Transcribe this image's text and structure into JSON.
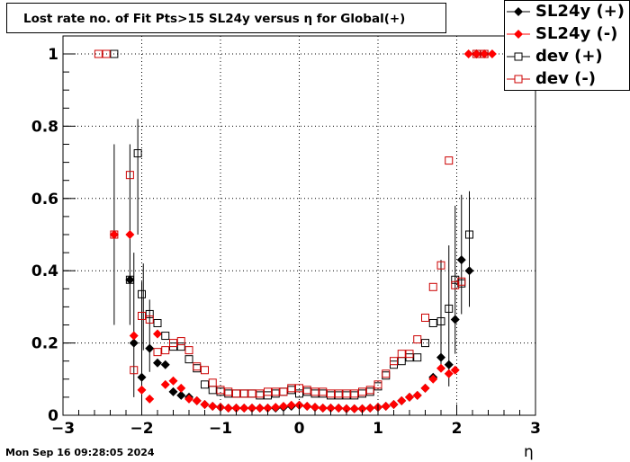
{
  "title": "Lost rate no. of Fit Pts>15 SL24y versus η for Global(+)",
  "timestamp": "Mon Sep 16 09:28:05 2024",
  "xlabel": "η",
  "chart_data": {
    "type": "scatter",
    "title": "Lost rate no. of Fit Pts>15 SL24y versus η for Global(+)",
    "xlabel": "η",
    "ylabel": "",
    "xlim": [
      -3,
      3
    ],
    "ylim": [
      0,
      1.02
    ],
    "x_ticks": [
      "−3",
      "−2",
      "−1",
      "0",
      "1",
      "2",
      "3"
    ],
    "y_ticks": [
      "0",
      "0.2",
      "0.4",
      "0.6",
      "0.8",
      "1"
    ],
    "grid": true,
    "legend_position": "top-right",
    "series": [
      {
        "name": "SL24y (+)",
        "color": "#000000",
        "marker": "filled-diamond",
        "points": [
          [
            -2.15,
            0.375
          ],
          [
            -2.1,
            0.2
          ],
          [
            -2.0,
            0.105
          ],
          [
            -1.9,
            0.185
          ],
          [
            -1.8,
            0.145
          ],
          [
            -1.7,
            0.14
          ],
          [
            -1.6,
            0.065
          ],
          [
            -1.5,
            0.055
          ],
          [
            -1.4,
            0.05
          ],
          [
            -1.3,
            0.04
          ],
          [
            -1.2,
            0.03
          ],
          [
            -1.1,
            0.025
          ],
          [
            -1.0,
            0.022
          ],
          [
            -0.9,
            0.02
          ],
          [
            -0.8,
            0.02
          ],
          [
            -0.7,
            0.02
          ],
          [
            -0.6,
            0.02
          ],
          [
            -0.5,
            0.02
          ],
          [
            -0.4,
            0.02
          ],
          [
            -0.3,
            0.02
          ],
          [
            -0.2,
            0.022
          ],
          [
            -0.1,
            0.025
          ],
          [
            0.0,
            0.028
          ],
          [
            0.1,
            0.025
          ],
          [
            0.2,
            0.022
          ],
          [
            0.3,
            0.02
          ],
          [
            0.4,
            0.02
          ],
          [
            0.5,
            0.02
          ],
          [
            0.6,
            0.018
          ],
          [
            0.7,
            0.018
          ],
          [
            0.8,
            0.018
          ],
          [
            0.9,
            0.02
          ],
          [
            1.0,
            0.022
          ],
          [
            1.1,
            0.025
          ],
          [
            1.2,
            0.03
          ],
          [
            1.3,
            0.04
          ],
          [
            1.4,
            0.05
          ],
          [
            1.5,
            0.055
          ],
          [
            1.6,
            0.075
          ],
          [
            1.7,
            0.105
          ],
          [
            1.8,
            0.16
          ],
          [
            1.9,
            0.14
          ],
          [
            1.98,
            0.265
          ],
          [
            2.06,
            0.43
          ],
          [
            2.16,
            0.4
          ],
          [
            2.25,
            1.0
          ]
        ]
      },
      {
        "name": "SL24y (-)",
        "color": "#ff0000",
        "marker": "filled-diamond",
        "points": [
          [
            -2.35,
            0.5
          ],
          [
            -2.15,
            0.5
          ],
          [
            -2.1,
            0.22
          ],
          [
            -2.0,
            0.07
          ],
          [
            -1.9,
            0.045
          ],
          [
            -1.8,
            0.225
          ],
          [
            -1.7,
            0.085
          ],
          [
            -1.6,
            0.095
          ],
          [
            -1.5,
            0.075
          ],
          [
            -1.4,
            0.045
          ],
          [
            -1.3,
            0.04
          ],
          [
            -1.2,
            0.03
          ],
          [
            -1.1,
            0.025
          ],
          [
            -1.0,
            0.022
          ],
          [
            -0.9,
            0.02
          ],
          [
            -0.8,
            0.02
          ],
          [
            -0.7,
            0.02
          ],
          [
            -0.6,
            0.02
          ],
          [
            -0.5,
            0.02
          ],
          [
            -0.4,
            0.02
          ],
          [
            -0.3,
            0.022
          ],
          [
            -0.2,
            0.025
          ],
          [
            -0.1,
            0.028
          ],
          [
            0.0,
            0.028
          ],
          [
            0.1,
            0.025
          ],
          [
            0.2,
            0.022
          ],
          [
            0.3,
            0.02
          ],
          [
            0.4,
            0.02
          ],
          [
            0.5,
            0.02
          ],
          [
            0.6,
            0.018
          ],
          [
            0.7,
            0.018
          ],
          [
            0.8,
            0.018
          ],
          [
            0.9,
            0.02
          ],
          [
            1.0,
            0.022
          ],
          [
            1.1,
            0.025
          ],
          [
            1.2,
            0.03
          ],
          [
            1.3,
            0.04
          ],
          [
            1.4,
            0.05
          ],
          [
            1.5,
            0.055
          ],
          [
            1.6,
            0.075
          ],
          [
            1.7,
            0.1
          ],
          [
            1.8,
            0.13
          ],
          [
            1.9,
            0.115
          ],
          [
            1.98,
            0.125
          ],
          [
            2.15,
            1.0
          ],
          [
            2.25,
            1.0
          ],
          [
            2.35,
            1.0
          ],
          [
            2.45,
            1.0
          ]
        ]
      },
      {
        "name": "dev (+)",
        "color": "#000000",
        "marker": "open-square",
        "points": [
          [
            -2.35,
            1.0
          ],
          [
            -2.15,
            0.375
          ],
          [
            -2.05,
            0.725
          ],
          [
            -2.0,
            0.335
          ],
          [
            -1.9,
            0.28
          ],
          [
            -1.8,
            0.255
          ],
          [
            -1.7,
            0.22
          ],
          [
            -1.6,
            0.19
          ],
          [
            -1.5,
            0.19
          ],
          [
            -1.4,
            0.155
          ],
          [
            -1.3,
            0.13
          ],
          [
            -1.2,
            0.085
          ],
          [
            -1.1,
            0.07
          ],
          [
            -1.0,
            0.065
          ],
          [
            -0.9,
            0.06
          ],
          [
            -0.8,
            0.06
          ],
          [
            -0.7,
            0.06
          ],
          [
            -0.6,
            0.06
          ],
          [
            -0.5,
            0.055
          ],
          [
            -0.4,
            0.055
          ],
          [
            -0.3,
            0.06
          ],
          [
            -0.2,
            0.065
          ],
          [
            -0.1,
            0.07
          ],
          [
            0.0,
            0.06
          ],
          [
            0.1,
            0.065
          ],
          [
            0.2,
            0.06
          ],
          [
            0.3,
            0.06
          ],
          [
            0.4,
            0.055
          ],
          [
            0.5,
            0.055
          ],
          [
            0.6,
            0.055
          ],
          [
            0.7,
            0.055
          ],
          [
            0.8,
            0.06
          ],
          [
            0.9,
            0.065
          ],
          [
            1.0,
            0.08
          ],
          [
            1.1,
            0.11
          ],
          [
            1.2,
            0.14
          ],
          [
            1.3,
            0.15
          ],
          [
            1.4,
            0.16
          ],
          [
            1.5,
            0.16
          ],
          [
            1.6,
            0.2
          ],
          [
            1.7,
            0.255
          ],
          [
            1.8,
            0.26
          ],
          [
            1.9,
            0.295
          ],
          [
            1.98,
            0.375
          ],
          [
            2.06,
            0.365
          ],
          [
            2.16,
            0.5
          ],
          [
            2.35,
            1.0
          ]
        ]
      },
      {
        "name": "dev (-)",
        "color": "#cc0000",
        "marker": "open-square",
        "points": [
          [
            -2.55,
            1.0
          ],
          [
            -2.45,
            1.0
          ],
          [
            -2.35,
            0.5
          ],
          [
            -2.15,
            0.665
          ],
          [
            -2.1,
            0.125
          ],
          [
            -2.0,
            0.275
          ],
          [
            -1.9,
            0.265
          ],
          [
            -1.8,
            0.175
          ],
          [
            -1.7,
            0.18
          ],
          [
            -1.6,
            0.2
          ],
          [
            -1.5,
            0.205
          ],
          [
            -1.4,
            0.18
          ],
          [
            -1.3,
            0.135
          ],
          [
            -1.2,
            0.125
          ],
          [
            -1.1,
            0.09
          ],
          [
            -1.0,
            0.07
          ],
          [
            -0.9,
            0.065
          ],
          [
            -0.8,
            0.06
          ],
          [
            -0.7,
            0.06
          ],
          [
            -0.6,
            0.06
          ],
          [
            -0.5,
            0.06
          ],
          [
            -0.4,
            0.065
          ],
          [
            -0.3,
            0.065
          ],
          [
            -0.2,
            0.065
          ],
          [
            -0.1,
            0.075
          ],
          [
            0.0,
            0.075
          ],
          [
            0.1,
            0.07
          ],
          [
            0.2,
            0.065
          ],
          [
            0.3,
            0.065
          ],
          [
            0.4,
            0.06
          ],
          [
            0.5,
            0.06
          ],
          [
            0.6,
            0.06
          ],
          [
            0.7,
            0.06
          ],
          [
            0.8,
            0.065
          ],
          [
            0.9,
            0.07
          ],
          [
            1.0,
            0.085
          ],
          [
            1.1,
            0.115
          ],
          [
            1.2,
            0.15
          ],
          [
            1.3,
            0.17
          ],
          [
            1.4,
            0.17
          ],
          [
            1.5,
            0.21
          ],
          [
            1.6,
            0.27
          ],
          [
            1.7,
            0.355
          ],
          [
            1.8,
            0.415
          ],
          [
            1.9,
            0.705
          ],
          [
            1.98,
            0.36
          ],
          [
            2.06,
            0.37
          ],
          [
            2.25,
            1.0
          ],
          [
            2.35,
            1.0
          ]
        ]
      }
    ],
    "error_bars": [
      {
        "x": -2.35,
        "low": 0.25,
        "high": 0.75
      },
      {
        "x": -2.15,
        "low": 0.25,
        "high": 0.75
      },
      {
        "x": -2.1,
        "low": 0.05,
        "high": 0.45
      },
      {
        "x": -2.05,
        "low": 0.5,
        "high": 0.82
      },
      {
        "x": -2.0,
        "low": 0.0,
        "high": 0.37
      },
      {
        "x": -1.9,
        "low": 0.12,
        "high": 0.32
      },
      {
        "x": -1.98,
        "low": 0.18,
        "high": 0.42
      },
      {
        "x": 1.8,
        "low": 0.12,
        "high": 0.43
      },
      {
        "x": 1.9,
        "low": 0.08,
        "high": 0.47
      },
      {
        "x": 1.98,
        "low": 0.17,
        "high": 0.58
      },
      {
        "x": 2.06,
        "low": 0.28,
        "high": 0.61
      },
      {
        "x": 2.16,
        "low": 0.3,
        "high": 0.62
      }
    ]
  }
}
